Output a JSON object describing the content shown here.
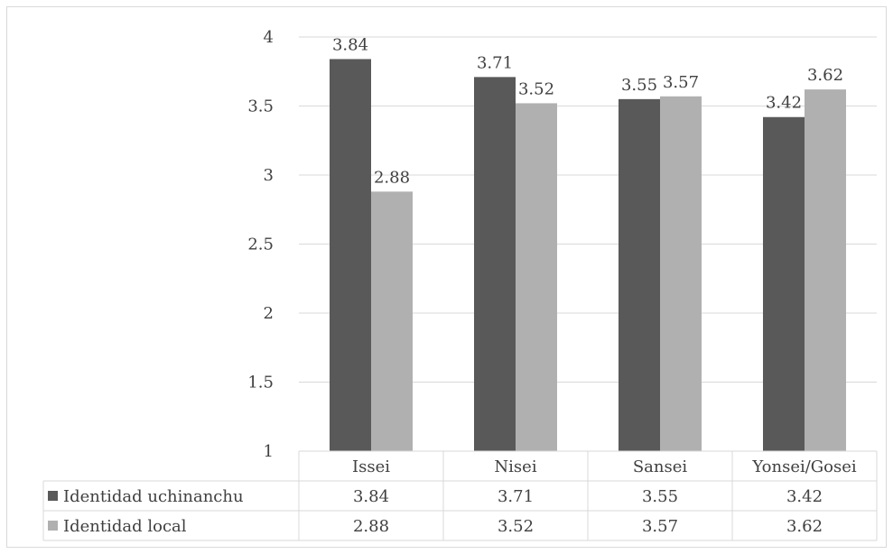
{
  "chart_data": {
    "type": "bar",
    "categories": [
      "Issei",
      "Nisei",
      "Sansei",
      "Yonsei/Gosei"
    ],
    "series": [
      {
        "name": "Identidad uchinanchu",
        "values": [
          3.84,
          3.71,
          3.55,
          3.42
        ],
        "color": "#595959"
      },
      {
        "name": "Identidad local",
        "values": [
          2.88,
          3.52,
          3.57,
          3.62
        ],
        "color": "#b0b0b0"
      }
    ],
    "ylim": [
      1,
      4
    ],
    "yticks": [
      "1",
      "1.5",
      "2",
      "2.5",
      "3",
      "3.5",
      "4"
    ],
    "ytick_values": [
      1,
      1.5,
      2,
      2.5,
      3,
      3.5,
      4
    ],
    "data_labels": [
      [
        "3.84",
        "3.71",
        "3.55",
        "3.42"
      ],
      [
        "2.88",
        "3.52",
        "3.57",
        "3.62"
      ]
    ],
    "grid": true,
    "legend": "data-table",
    "gridline_color": "#d9d9d9",
    "text_color": "#404040"
  }
}
